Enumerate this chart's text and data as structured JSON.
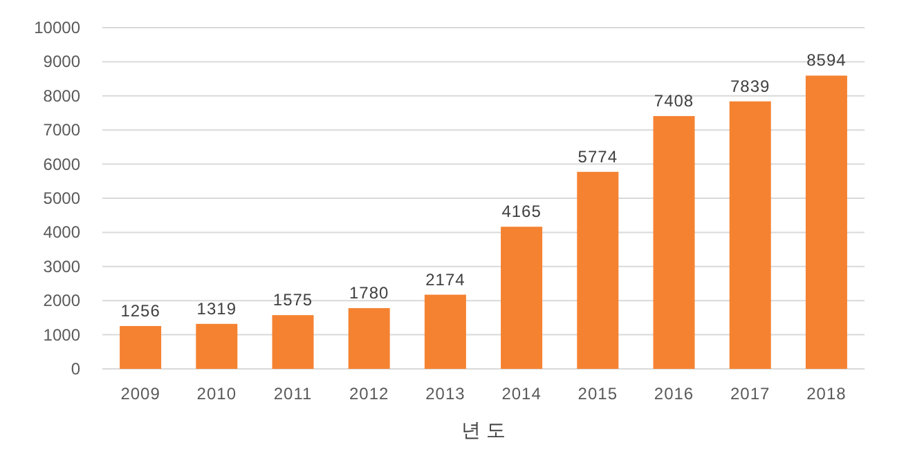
{
  "chart_data": {
    "type": "bar",
    "xlabel": "년 도",
    "categories": [
      "2009",
      "2010",
      "2011",
      "2012",
      "2013",
      "2014",
      "2015",
      "2016",
      "2017",
      "2018"
    ],
    "series": [
      {
        "color": "#f58231",
        "values": [
          1256,
          1319,
          1575,
          1780,
          2174,
          4165,
          5774,
          7408,
          7839,
          8594
        ]
      }
    ],
    "ylim": [
      0,
      10000
    ],
    "yticks": [
      0,
      1000,
      2000,
      3000,
      4000,
      5000,
      6000,
      7000,
      8000,
      9000,
      10000
    ],
    "grid": "y",
    "data_labels": true
  }
}
